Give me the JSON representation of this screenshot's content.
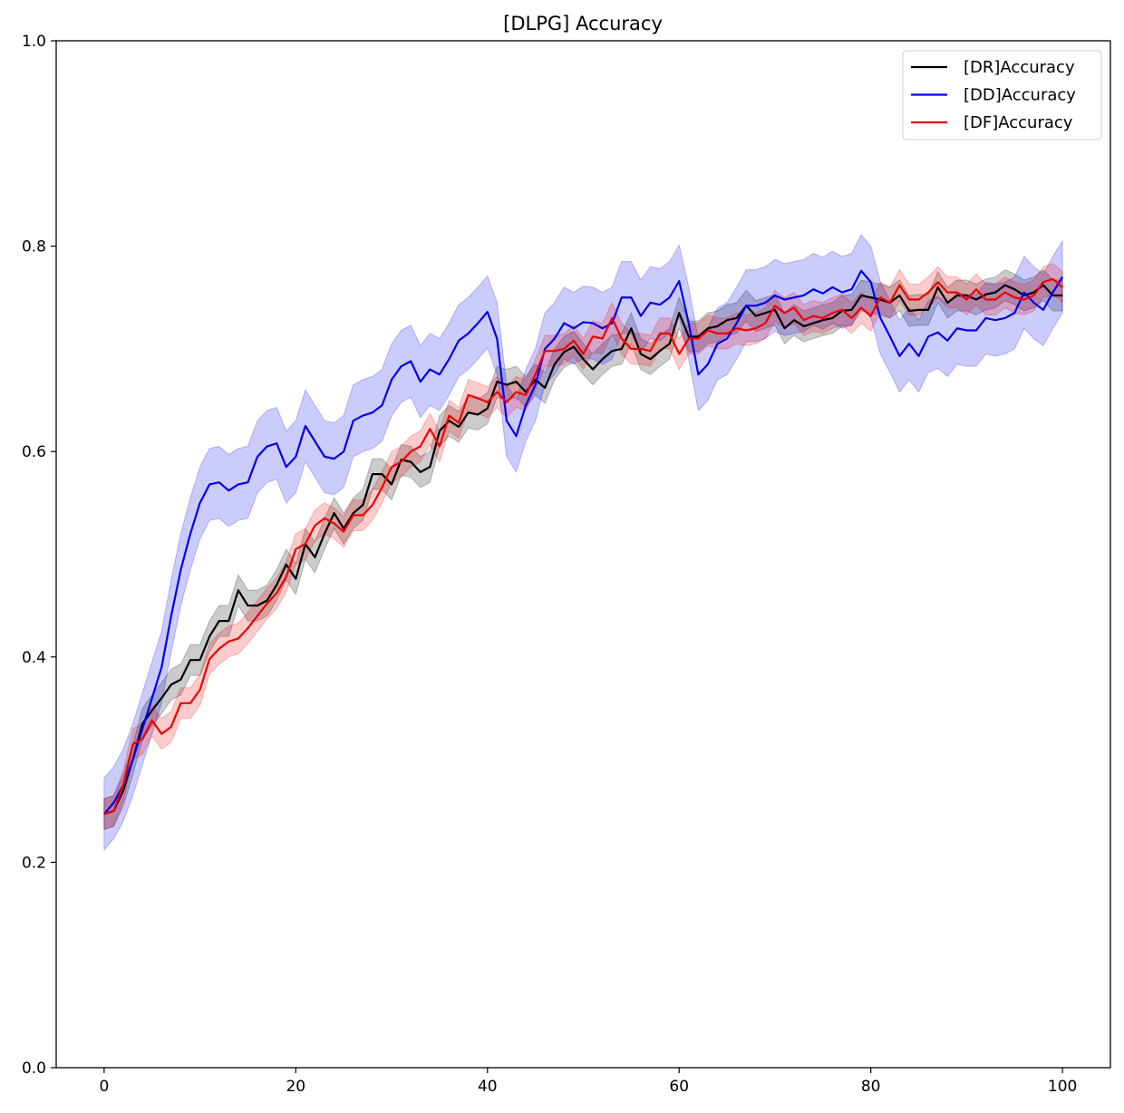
{
  "chart_data": {
    "type": "line",
    "title": "[DLPG] Accuracy",
    "xlabel": "",
    "ylabel": "",
    "xlim": [
      -5,
      105
    ],
    "ylim": [
      0.0,
      1.0
    ],
    "x_ticks": [
      0,
      20,
      40,
      60,
      80,
      100
    ],
    "x_tick_labels": [
      "0",
      "20",
      "40",
      "60",
      "80",
      "100"
    ],
    "y_ticks": [
      0.0,
      0.2,
      0.4,
      0.6,
      0.8,
      1.0
    ],
    "y_tick_labels": [
      "0.0",
      "0.2",
      "0.4",
      "0.6",
      "0.8",
      "1.0"
    ],
    "grid": false,
    "legend_position": "top-right",
    "series": [
      {
        "name": "[DR]Accuracy",
        "color": "#000000",
        "band_halfwidth": 0.015,
        "points": [
          [
            0,
            0.247
          ],
          [
            1,
            0.25
          ],
          [
            2,
            0.27
          ],
          [
            3,
            0.3
          ],
          [
            4,
            0.335
          ],
          [
            5,
            0.348
          ],
          [
            6,
            0.36
          ],
          [
            7,
            0.373
          ],
          [
            8,
            0.378
          ],
          [
            9,
            0.397
          ],
          [
            10,
            0.397
          ],
          [
            11,
            0.42
          ],
          [
            12,
            0.435
          ],
          [
            13,
            0.435
          ],
          [
            14,
            0.465
          ],
          [
            15,
            0.45
          ],
          [
            16,
            0.45
          ],
          [
            17,
            0.455
          ],
          [
            18,
            0.47
          ],
          [
            19,
            0.49
          ],
          [
            20,
            0.476
          ],
          [
            21,
            0.51
          ],
          [
            22,
            0.497
          ],
          [
            23,
            0.52
          ],
          [
            24,
            0.54
          ],
          [
            25,
            0.525
          ],
          [
            26,
            0.54
          ],
          [
            27,
            0.548
          ],
          [
            28,
            0.578
          ],
          [
            29,
            0.578
          ],
          [
            30,
            0.568
          ],
          [
            31,
            0.592
          ],
          [
            32,
            0.59
          ],
          [
            33,
            0.58
          ],
          [
            34,
            0.585
          ],
          [
            35,
            0.62
          ],
          [
            36,
            0.63
          ],
          [
            37,
            0.624
          ],
          [
            38,
            0.638
          ],
          [
            39,
            0.636
          ],
          [
            40,
            0.642
          ],
          [
            41,
            0.668
          ],
          [
            42,
            0.665
          ],
          [
            43,
            0.668
          ],
          [
            44,
            0.658
          ],
          [
            45,
            0.67
          ],
          [
            46,
            0.662
          ],
          [
            47,
            0.685
          ],
          [
            48,
            0.697
          ],
          [
            49,
            0.702
          ],
          [
            50,
            0.69
          ],
          [
            51,
            0.68
          ],
          [
            52,
            0.69
          ],
          [
            53,
            0.698
          ],
          [
            54,
            0.7
          ],
          [
            55,
            0.72
          ],
          [
            56,
            0.695
          ],
          [
            57,
            0.69
          ],
          [
            58,
            0.698
          ],
          [
            59,
            0.705
          ],
          [
            60,
            0.735
          ],
          [
            61,
            0.712
          ],
          [
            62,
            0.712
          ],
          [
            63,
            0.72
          ],
          [
            64,
            0.722
          ],
          [
            65,
            0.728
          ],
          [
            66,
            0.73
          ],
          [
            67,
            0.742
          ],
          [
            68,
            0.732
          ],
          [
            69,
            0.735
          ],
          [
            70,
            0.738
          ],
          [
            71,
            0.72
          ],
          [
            72,
            0.728
          ],
          [
            73,
            0.722
          ],
          [
            74,
            0.725
          ],
          [
            75,
            0.728
          ],
          [
            76,
            0.73
          ],
          [
            77,
            0.737
          ],
          [
            78,
            0.738
          ],
          [
            79,
            0.752
          ],
          [
            80,
            0.75
          ],
          [
            81,
            0.748
          ],
          [
            82,
            0.745
          ],
          [
            83,
            0.752
          ],
          [
            84,
            0.737
          ],
          [
            85,
            0.738
          ],
          [
            86,
            0.738
          ],
          [
            87,
            0.76
          ],
          [
            88,
            0.745
          ],
          [
            89,
            0.752
          ],
          [
            90,
            0.752
          ],
          [
            91,
            0.748
          ],
          [
            92,
            0.753
          ],
          [
            93,
            0.755
          ],
          [
            94,
            0.762
          ],
          [
            95,
            0.758
          ],
          [
            96,
            0.752
          ],
          [
            97,
            0.755
          ],
          [
            98,
            0.762
          ],
          [
            99,
            0.752
          ],
          [
            100,
            0.752
          ]
        ]
      },
      {
        "name": "[DD]Accuracy",
        "color": "#0000ee",
        "band_halfwidth": 0.035,
        "points": [
          [
            0,
            0.247
          ],
          [
            1,
            0.258
          ],
          [
            2,
            0.275
          ],
          [
            3,
            0.3
          ],
          [
            4,
            0.33
          ],
          [
            5,
            0.36
          ],
          [
            6,
            0.39
          ],
          [
            7,
            0.44
          ],
          [
            8,
            0.485
          ],
          [
            9,
            0.52
          ],
          [
            10,
            0.55
          ],
          [
            11,
            0.568
          ],
          [
            12,
            0.57
          ],
          [
            13,
            0.562
          ],
          [
            14,
            0.568
          ],
          [
            15,
            0.57
          ],
          [
            16,
            0.595
          ],
          [
            17,
            0.605
          ],
          [
            18,
            0.608
          ],
          [
            19,
            0.585
          ],
          [
            20,
            0.595
          ],
          [
            21,
            0.625
          ],
          [
            22,
            0.61
          ],
          [
            23,
            0.595
          ],
          [
            24,
            0.593
          ],
          [
            25,
            0.6
          ],
          [
            26,
            0.63
          ],
          [
            27,
            0.635
          ],
          [
            28,
            0.638
          ],
          [
            29,
            0.645
          ],
          [
            30,
            0.67
          ],
          [
            31,
            0.683
          ],
          [
            32,
            0.688
          ],
          [
            33,
            0.668
          ],
          [
            34,
            0.68
          ],
          [
            35,
            0.675
          ],
          [
            36,
            0.69
          ],
          [
            37,
            0.708
          ],
          [
            38,
            0.715
          ],
          [
            39,
            0.725
          ],
          [
            40,
            0.736
          ],
          [
            41,
            0.71
          ],
          [
            42,
            0.63
          ],
          [
            43,
            0.615
          ],
          [
            44,
            0.645
          ],
          [
            45,
            0.665
          ],
          [
            46,
            0.7
          ],
          [
            47,
            0.71
          ],
          [
            48,
            0.725
          ],
          [
            49,
            0.72
          ],
          [
            50,
            0.726
          ],
          [
            51,
            0.725
          ],
          [
            52,
            0.72
          ],
          [
            53,
            0.725
          ],
          [
            54,
            0.75
          ],
          [
            55,
            0.75
          ],
          [
            56,
            0.732
          ],
          [
            57,
            0.745
          ],
          [
            58,
            0.743
          ],
          [
            59,
            0.75
          ],
          [
            60,
            0.766
          ],
          [
            61,
            0.725
          ],
          [
            62,
            0.675
          ],
          [
            63,
            0.685
          ],
          [
            64,
            0.705
          ],
          [
            65,
            0.71
          ],
          [
            66,
            0.725
          ],
          [
            67,
            0.742
          ],
          [
            68,
            0.742
          ],
          [
            69,
            0.745
          ],
          [
            70,
            0.752
          ],
          [
            71,
            0.748
          ],
          [
            72,
            0.75
          ],
          [
            73,
            0.752
          ],
          [
            74,
            0.758
          ],
          [
            75,
            0.754
          ],
          [
            76,
            0.76
          ],
          [
            77,
            0.755
          ],
          [
            78,
            0.758
          ],
          [
            79,
            0.776
          ],
          [
            80,
            0.765
          ],
          [
            81,
            0.73
          ],
          [
            82,
            0.712
          ],
          [
            83,
            0.693
          ],
          [
            84,
            0.705
          ],
          [
            85,
            0.693
          ],
          [
            86,
            0.712
          ],
          [
            87,
            0.716
          ],
          [
            88,
            0.708
          ],
          [
            89,
            0.72
          ],
          [
            90,
            0.718
          ],
          [
            91,
            0.718
          ],
          [
            92,
            0.73
          ],
          [
            93,
            0.728
          ],
          [
            94,
            0.73
          ],
          [
            95,
            0.735
          ],
          [
            96,
            0.755
          ],
          [
            97,
            0.745
          ],
          [
            98,
            0.738
          ],
          [
            99,
            0.755
          ],
          [
            100,
            0.77
          ]
        ]
      },
      {
        "name": "[DF]Accuracy",
        "color": "#ee0000",
        "band_halfwidth": 0.015,
        "points": [
          [
            0,
            0.247
          ],
          [
            1,
            0.25
          ],
          [
            2,
            0.275
          ],
          [
            3,
            0.315
          ],
          [
            4,
            0.32
          ],
          [
            5,
            0.338
          ],
          [
            6,
            0.325
          ],
          [
            7,
            0.332
          ],
          [
            8,
            0.355
          ],
          [
            9,
            0.355
          ],
          [
            10,
            0.368
          ],
          [
            11,
            0.398
          ],
          [
            12,
            0.408
          ],
          [
            13,
            0.415
          ],
          [
            14,
            0.418
          ],
          [
            15,
            0.428
          ],
          [
            16,
            0.44
          ],
          [
            17,
            0.452
          ],
          [
            18,
            0.462
          ],
          [
            19,
            0.478
          ],
          [
            20,
            0.505
          ],
          [
            21,
            0.51
          ],
          [
            22,
            0.528
          ],
          [
            23,
            0.535
          ],
          [
            24,
            0.53
          ],
          [
            25,
            0.522
          ],
          [
            26,
            0.538
          ],
          [
            27,
            0.538
          ],
          [
            28,
            0.548
          ],
          [
            29,
            0.565
          ],
          [
            30,
            0.585
          ],
          [
            31,
            0.59
          ],
          [
            32,
            0.6
          ],
          [
            33,
            0.605
          ],
          [
            34,
            0.622
          ],
          [
            35,
            0.605
          ],
          [
            36,
            0.635
          ],
          [
            37,
            0.628
          ],
          [
            38,
            0.655
          ],
          [
            39,
            0.652
          ],
          [
            40,
            0.648
          ],
          [
            41,
            0.658
          ],
          [
            42,
            0.648
          ],
          [
            43,
            0.658
          ],
          [
            44,
            0.655
          ],
          [
            45,
            0.675
          ],
          [
            46,
            0.698
          ],
          [
            47,
            0.698
          ],
          [
            48,
            0.7
          ],
          [
            49,
            0.708
          ],
          [
            50,
            0.695
          ],
          [
            51,
            0.712
          ],
          [
            52,
            0.71
          ],
          [
            53,
            0.73
          ],
          [
            54,
            0.71
          ],
          [
            55,
            0.7
          ],
          [
            56,
            0.7
          ],
          [
            57,
            0.698
          ],
          [
            58,
            0.715
          ],
          [
            59,
            0.715
          ],
          [
            60,
            0.695
          ],
          [
            61,
            0.71
          ],
          [
            62,
            0.71
          ],
          [
            63,
            0.718
          ],
          [
            64,
            0.715
          ],
          [
            65,
            0.715
          ],
          [
            66,
            0.72
          ],
          [
            67,
            0.718
          ],
          [
            68,
            0.72
          ],
          [
            69,
            0.725
          ],
          [
            70,
            0.742
          ],
          [
            71,
            0.735
          ],
          [
            72,
            0.74
          ],
          [
            73,
            0.728
          ],
          [
            74,
            0.732
          ],
          [
            75,
            0.73
          ],
          [
            76,
            0.735
          ],
          [
            77,
            0.738
          ],
          [
            78,
            0.73
          ],
          [
            79,
            0.74
          ],
          [
            80,
            0.732
          ],
          [
            81,
            0.75
          ],
          [
            82,
            0.745
          ],
          [
            83,
            0.762
          ],
          [
            84,
            0.748
          ],
          [
            85,
            0.748
          ],
          [
            86,
            0.755
          ],
          [
            87,
            0.765
          ],
          [
            88,
            0.755
          ],
          [
            89,
            0.755
          ],
          [
            90,
            0.748
          ],
          [
            91,
            0.758
          ],
          [
            92,
            0.748
          ],
          [
            93,
            0.748
          ],
          [
            94,
            0.755
          ],
          [
            95,
            0.75
          ],
          [
            96,
            0.748
          ],
          [
            97,
            0.752
          ],
          [
            98,
            0.765
          ],
          [
            99,
            0.768
          ],
          [
            100,
            0.76
          ]
        ]
      }
    ]
  }
}
